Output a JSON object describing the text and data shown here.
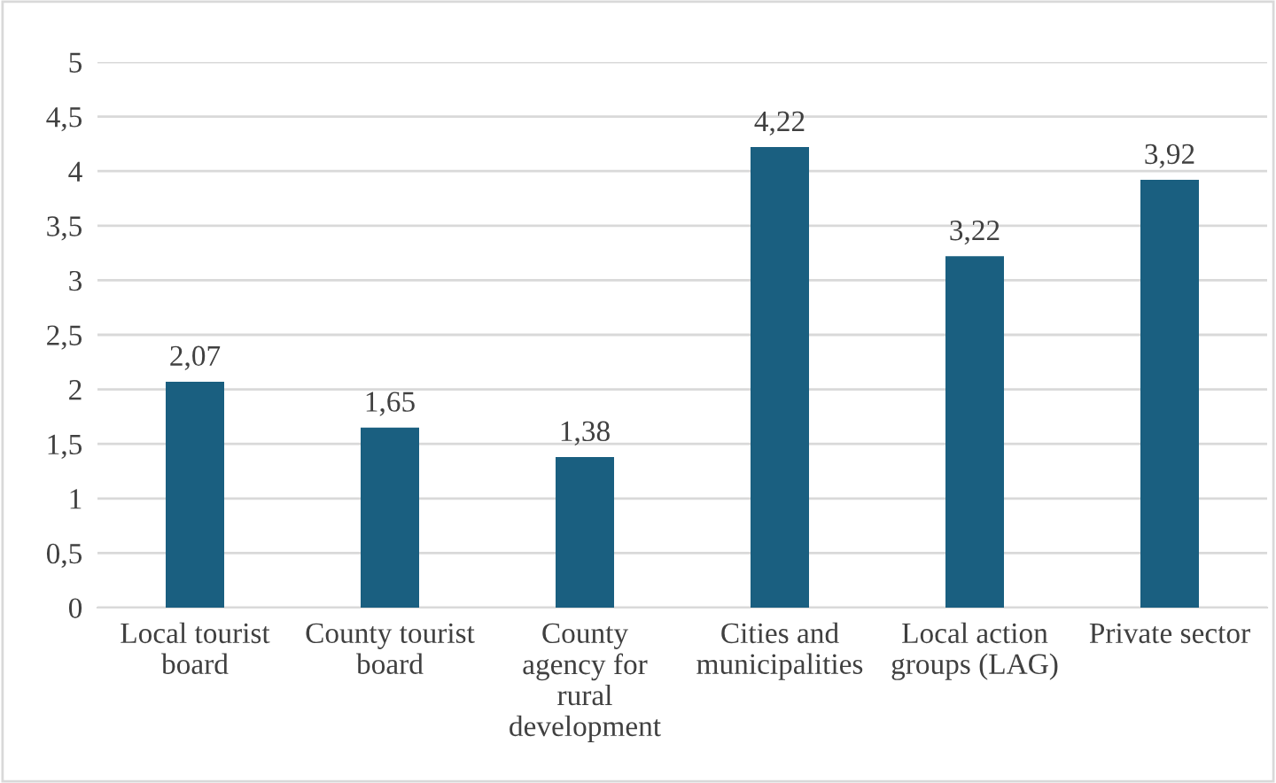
{
  "chart_data": {
    "type": "bar",
    "categories": [
      "Local tourist\nboard",
      "County tourist\nboard",
      "County\nagency for\nrural\ndevelopment",
      "Cities and\nmunicipalities",
      "Local action\ngroups (LAG)",
      "Private sector"
    ],
    "values": [
      2.07,
      1.65,
      1.38,
      4.22,
      3.22,
      3.92
    ],
    "value_labels": [
      "2,07",
      "1,65",
      "1,38",
      "4,22",
      "3,22",
      "3,92"
    ],
    "color": "#1a5f80",
    "ylim": [
      0,
      5
    ],
    "yticks": [
      0,
      {
        "value": 0.5,
        "label": "0,5"
      },
      1,
      {
        "value": 1.5,
        "label": "1,5"
      },
      2,
      {
        "value": 2.5,
        "label": "2,5"
      },
      3,
      {
        "value": 3.5,
        "label": "3,5"
      },
      4,
      {
        "value": 4.5,
        "label": "4,5"
      },
      5
    ],
    "grid": "y"
  }
}
